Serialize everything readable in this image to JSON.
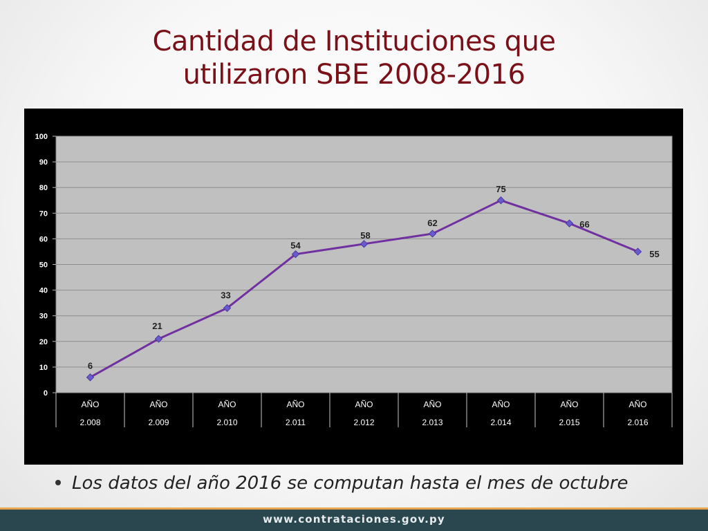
{
  "slide": {
    "title_line1": "Cantidad de Instituciones que",
    "title_line2": "utilizaron SBE 2008-2016",
    "bullet_note": "Los datos del año 2016 se computan hasta el mes de octubre",
    "footer_url": "www.contrataciones.gov.py"
  },
  "colors": {
    "title": "#7a1118",
    "series_line": "#7030a0",
    "marker": "#6a5acd",
    "plot_area": "#c0c0c0",
    "chart_background": "#000000",
    "footer_bar": "#2a4750",
    "footer_accent": "#e8a54b"
  },
  "chart_data": {
    "type": "line",
    "title": "",
    "xlabel": "",
    "ylabel": "",
    "categories": [
      [
        "AÑO",
        "2.008"
      ],
      [
        "AÑO",
        "2.009"
      ],
      [
        "AÑO",
        "2.010"
      ],
      [
        "AÑO",
        "2.011"
      ],
      [
        "AÑO",
        "2.012"
      ],
      [
        "AÑO",
        "2.013"
      ],
      [
        "AÑO",
        "2.014"
      ],
      [
        "AÑO",
        "2.015"
      ],
      [
        "AÑO",
        "2.016"
      ]
    ],
    "series": [
      {
        "values": [
          6,
          21,
          33,
          54,
          58,
          62,
          75,
          66,
          55
        ]
      }
    ],
    "data_labels": [
      "6",
      "21",
      "33",
      "54",
      "58",
      "62",
      "75",
      "66",
      "55"
    ],
    "ylim": [
      0,
      100
    ],
    "yticks": [
      0,
      10,
      20,
      30,
      40,
      50,
      60,
      70,
      80,
      90,
      100
    ],
    "grid": true,
    "legend": "none",
    "marker": "diamond"
  }
}
